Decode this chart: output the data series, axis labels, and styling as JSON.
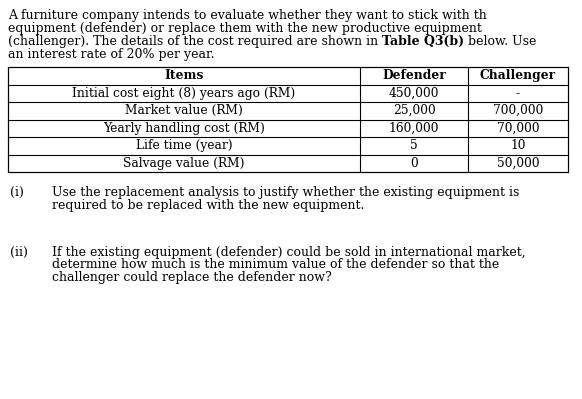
{
  "intro_lines": [
    [
      "A furniture company intends to evaluate whether they want to stick with th"
    ],
    [
      "equipment (defender) or replace them with the new productive equipment"
    ],
    [
      "(challenger). The details of the cost required are shown in ",
      "Table Q3(b)",
      " below. Use"
    ],
    [
      "an interest rate of 20% per year."
    ]
  ],
  "table_headers": [
    "Items",
    "Defender",
    "Challenger"
  ],
  "table_rows": [
    [
      "Initial cost eight (8) years ago (RM)",
      "450,000",
      "-"
    ],
    [
      "Market value (RM)",
      "25,000",
      "700,000"
    ],
    [
      "Yearly handling cost (RM)",
      "160,000",
      "70,000"
    ],
    [
      "Life time (year)",
      "5",
      "10"
    ],
    [
      "Salvage value (RM)",
      "0",
      "50,000"
    ]
  ],
  "qi_label": "(i)",
  "qi_lines": [
    "Use the replacement analysis to justify whether the existing equipment is",
    "required to be replaced with the new equipment."
  ],
  "qii_label": "(ii)",
  "qii_lines": [
    "If the existing equipment (defender) could be sold in international market,",
    "determine how much is the minimum value of the defender so that the",
    "challenger could replace the defender now?"
  ],
  "bg_color": "#ffffff",
  "text_color": "#000000",
  "font_size": 9.0,
  "table_font_size": 8.8
}
